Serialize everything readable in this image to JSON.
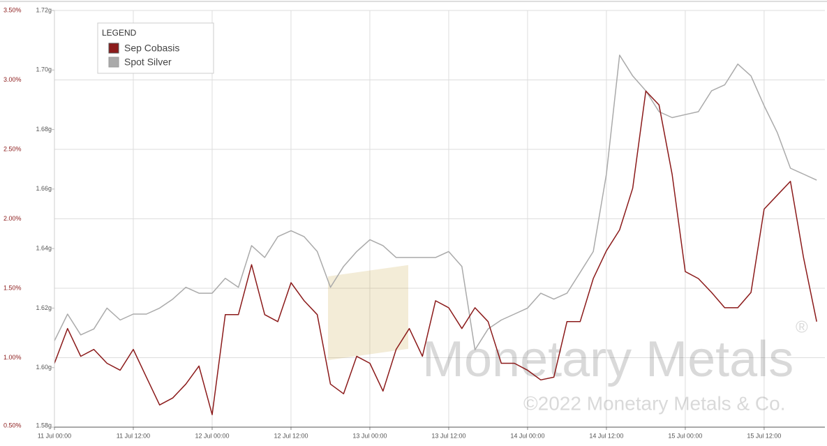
{
  "chart_data": {
    "type": "line",
    "legend_title": "LEGEND",
    "watermark": [
      "Monetary Metals",
      "®",
      "©2022 Monetary Metals & Co."
    ],
    "x": [
      "11 Jul 00:00",
      "11 Jul 02:00",
      "11 Jul 04:00",
      "11 Jul 06:00",
      "11 Jul 08:00",
      "11 Jul 10:00",
      "11 Jul 12:00",
      "11 Jul 14:00",
      "11 Jul 16:00",
      "11 Jul 18:00",
      "11 Jul 20:00",
      "11 Jul 22:00",
      "12 Jul 00:00",
      "12 Jul 02:00",
      "12 Jul 04:00",
      "12 Jul 06:00",
      "12 Jul 08:00",
      "12 Jul 10:00",
      "12 Jul 12:00",
      "12 Jul 14:00",
      "12 Jul 16:00",
      "12 Jul 18:00",
      "12 Jul 20:00",
      "12 Jul 22:00",
      "13 Jul 00:00",
      "13 Jul 02:00",
      "13 Jul 04:00",
      "13 Jul 06:00",
      "13 Jul 08:00",
      "13 Jul 10:00",
      "13 Jul 12:00",
      "13 Jul 14:00",
      "13 Jul 16:00",
      "13 Jul 18:00",
      "13 Jul 20:00",
      "13 Jul 22:00",
      "14 Jul 00:00",
      "14 Jul 02:00",
      "14 Jul 04:00",
      "14 Jul 06:00",
      "14 Jul 08:00",
      "14 Jul 10:00",
      "14 Jul 12:00",
      "14 Jul 14:00",
      "14 Jul 16:00",
      "14 Jul 18:00",
      "14 Jul 20:00",
      "14 Jul 22:00",
      "15 Jul 00:00",
      "15 Jul 02:00",
      "15 Jul 04:00",
      "15 Jul 06:00",
      "15 Jul 08:00",
      "15 Jul 10:00",
      "15 Jul 12:00",
      "15 Jul 14:00",
      "15 Jul 16:00",
      "15 Jul 18:00",
      "15 Jul 20:00"
    ],
    "xlim": [
      "11 Jul 00:00",
      "15 Jul 21:15"
    ],
    "xticks": [
      "11 Jul 00:00",
      "11 Jul 12:00",
      "12 Jul 00:00",
      "12 Jul 12:00",
      "13 Jul 00:00",
      "13 Jul 12:00",
      "14 Jul 00:00",
      "14 Jul 12:00",
      "15 Jul 00:00",
      "15 Jul 12:00"
    ],
    "ylim": [
      0.5,
      3.5
    ],
    "yticks": [
      {
        "value": 0.5,
        "label": "0.50%"
      },
      {
        "value": 1.0,
        "label": "1.00%"
      },
      {
        "value": 1.5,
        "label": "1.50%"
      },
      {
        "value": 2.0,
        "label": "2.00%"
      },
      {
        "value": 2.5,
        "label": "2.50%"
      },
      {
        "value": 3.0,
        "label": "3.00%"
      },
      {
        "value": 3.5,
        "label": "3.50%"
      }
    ],
    "y2lim": [
      1.58,
      1.72
    ],
    "y2ticks": [
      {
        "value": 1.58,
        "label": "1.58g"
      },
      {
        "value": 1.6,
        "label": "1.60g"
      },
      {
        "value": 1.62,
        "label": "1.62g"
      },
      {
        "value": 1.64,
        "label": "1.64g"
      },
      {
        "value": 1.66,
        "label": "1.66g"
      },
      {
        "value": 1.68,
        "label": "1.68g"
      },
      {
        "value": 1.7,
        "label": "1.70g"
      },
      {
        "value": 1.72,
        "label": "1.72g"
      }
    ],
    "grid": true,
    "series": [
      {
        "name": "Sep Cobasis",
        "color": "#8b1a1a",
        "axis": "y",
        "values": [
          0.96,
          1.21,
          1.01,
          1.06,
          0.96,
          0.91,
          1.06,
          0.86,
          0.66,
          0.71,
          0.81,
          0.94,
          0.59,
          1.31,
          1.31,
          1.67,
          1.31,
          1.26,
          1.54,
          1.41,
          1.31,
          0.81,
          0.74,
          1.01,
          0.96,
          0.76,
          1.06,
          1.21,
          1.01,
          1.41,
          1.36,
          1.21,
          1.36,
          1.26,
          0.96,
          0.96,
          0.91,
          0.84,
          0.86,
          1.26,
          1.26,
          1.57,
          1.77,
          1.92,
          2.22,
          2.92,
          2.82,
          2.32,
          1.62,
          1.57,
          1.47,
          1.36,
          1.36,
          1.47,
          2.07,
          2.17,
          2.27,
          1.72,
          1.26
        ]
      },
      {
        "name": "Spot Silver",
        "color": "#aaaaaa",
        "axis": "y2",
        "values": [
          1.609,
          1.618,
          1.611,
          1.613,
          1.62,
          1.616,
          1.618,
          1.618,
          1.62,
          1.623,
          1.627,
          1.625,
          1.625,
          1.63,
          1.627,
          1.641,
          1.637,
          1.644,
          1.646,
          1.644,
          1.639,
          1.627,
          1.634,
          1.639,
          1.643,
          1.641,
          1.637,
          1.637,
          1.637,
          1.637,
          1.639,
          1.634,
          1.606,
          1.613,
          1.616,
          1.618,
          1.62,
          1.625,
          1.623,
          1.625,
          1.632,
          1.639,
          1.665,
          1.705,
          1.698,
          1.693,
          1.686,
          1.684,
          1.685,
          1.686,
          1.693,
          1.695,
          1.702,
          1.698,
          1.688,
          1.679,
          1.667,
          1.665,
          1.663
        ]
      }
    ],
    "legend_position": "upper left"
  }
}
